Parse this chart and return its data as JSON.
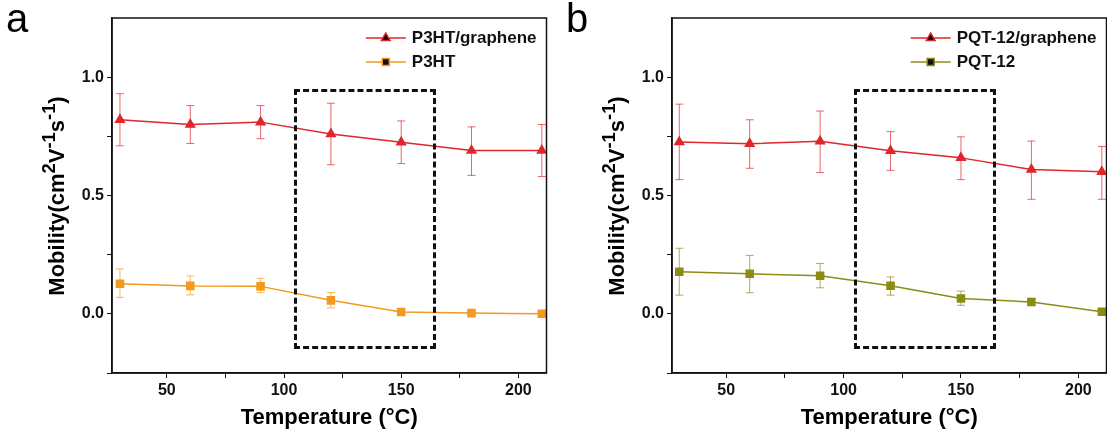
{
  "chart_data": [
    {
      "type": "line",
      "annotations": [
        "a"
      ],
      "xlabel": "Temperature (°C)",
      "ylabel": "Mobility(cm$^{2}$V$^{-1}$s$^{-1}$)",
      "x": [
        30,
        60,
        90,
        120,
        150,
        180,
        210
      ],
      "xlim": [
        26.6,
        212
      ],
      "xticks": [
        50,
        {
          "value": 75,
          "label": null
        },
        100,
        {
          "value": 125,
          "label": null
        },
        150,
        {
          "value": 175,
          "label": null
        },
        200
      ],
      "ylim": [
        -0.25,
        1.25
      ],
      "yticks": [
        {
          "value": -0.25,
          "label": null
        },
        {
          "value": 0,
          "label": "0.0"
        },
        {
          "value": 0.25,
          "label": null
        },
        {
          "value": 0.5,
          "label": "0.5"
        },
        {
          "value": 0.75,
          "label": null
        },
        {
          "value": 1,
          "label": "1.0"
        }
      ],
      "legend": "top right",
      "line_style": "solid",
      "series": [
        {
          "name": "P3HT/graphene",
          "color": "#e0262c",
          "marker": "triangle",
          "values": [
            0.82,
            0.8,
            0.81,
            0.76,
            0.725,
            0.69,
            0.69
          ],
          "errors": [
            [
              0.71,
              0.93
            ],
            [
              0.72,
              0.88
            ],
            [
              0.74,
              0.88
            ],
            [
              0.63,
              0.89
            ],
            [
              0.635,
              0.815
            ],
            [
              0.585,
              0.79
            ],
            [
              0.58,
              0.8
            ]
          ]
        },
        {
          "name": "P3HT",
          "color": "#f39a1e",
          "marker": "square",
          "values": [
            0.127,
            0.118,
            0.116,
            0.057,
            0.008,
            0.003,
            0
          ],
          "errors": [
            [
              0.07,
              0.19
            ],
            [
              0.08,
              0.16
            ],
            [
              0.09,
              0.15
            ],
            [
              0.025,
              0.09
            ],
            null,
            null,
            null
          ]
        }
      ]
    },
    {
      "type": "line",
      "annotations": [
        "b"
      ],
      "xlabel": "Temperature (°C)",
      "ylabel": "Mobility(cm$^{2}$V$^{-1}$s$^{-1}$)",
      "x": [
        30,
        60,
        90,
        120,
        150,
        180,
        210
      ],
      "xlim": [
        26.9,
        212
      ],
      "xticks": [
        50,
        {
          "value": 75,
          "label": null
        },
        100,
        {
          "value": 125,
          "label": null
        },
        150,
        {
          "value": 175,
          "label": null
        },
        200
      ],
      "ylim": [
        -0.25,
        1.25
      ],
      "yticks": [
        {
          "value": -0.25,
          "label": null
        },
        {
          "value": 0,
          "label": "0.0"
        },
        {
          "value": 0.25,
          "label": null
        },
        {
          "value": 0.5,
          "label": "0.5"
        },
        {
          "value": 0.75,
          "label": null
        },
        {
          "value": 1,
          "label": "1.0"
        }
      ],
      "legend": "top right",
      "line_style": "solid",
      "series": [
        {
          "name": "PQT-12/graphene",
          "color": "#e0262c",
          "marker": "triangle",
          "values": [
            0.726,
            0.719,
            0.729,
            0.689,
            0.659,
            0.61,
            0.6
          ],
          "errors": [
            [
              0.567,
              0.886
            ],
            [
              0.615,
              0.82
            ],
            [
              0.597,
              0.857
            ],
            [
              0.606,
              0.77
            ],
            [
              0.567,
              0.748
            ],
            [
              0.484,
              0.73
            ],
            [
              0.484,
              0.707
            ]
          ]
        },
        {
          "name": "PQT-12",
          "color": "#8c8c14",
          "marker": "square",
          "values": [
            0.178,
            0.169,
            0.161,
            0.119,
            0.065,
            0.05,
            0.009
          ],
          "errors": [
            [
              0.079,
              0.277
            ],
            [
              0.089,
              0.247
            ],
            [
              0.11,
              0.213
            ],
            [
              0.079,
              0.156
            ],
            [
              0.036,
              0.096
            ],
            [
              0.035,
              0.065
            ],
            null
          ]
        }
      ]
    }
  ]
}
